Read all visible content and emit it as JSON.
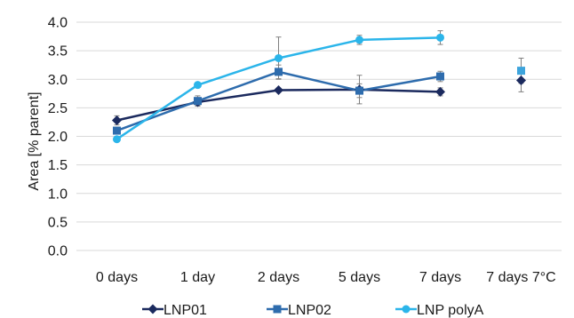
{
  "chart_data": {
    "type": "line",
    "title": "",
    "xlabel": "",
    "ylabel": "Area [% parent]",
    "ylim": [
      0.0,
      4.0
    ],
    "yticks": [
      "0.0",
      "0.5",
      "1.0",
      "1.5",
      "2.0",
      "2.5",
      "3.0",
      "3.5",
      "4.0"
    ],
    "categories": [
      "0 days",
      "1 day",
      "2 days",
      "5 days",
      "7 days",
      "7 days 7°C"
    ],
    "grid": "horizontal",
    "legend_position": "bottom",
    "series": [
      {
        "name": "LNP01",
        "color": "#1b2a5e",
        "marker": "diamond",
        "values": [
          2.28,
          2.6,
          2.81,
          2.82,
          2.78,
          2.98
        ],
        "errors": [
          0.08,
          0.06,
          0.03,
          0.25,
          0.07,
          0.2
        ],
        "connected": [
          true,
          true,
          true,
          true,
          true,
          false
        ]
      },
      {
        "name": "LNP02",
        "color": "#2e6cad",
        "marker": "square",
        "values": [
          2.1,
          2.62,
          3.13,
          2.8,
          3.05,
          3.15
        ],
        "errors": [
          0.06,
          0.09,
          0.12,
          0.12,
          0.09,
          0.22
        ],
        "connected": [
          true,
          true,
          true,
          true,
          true,
          false
        ]
      },
      {
        "name": "LNP polyA",
        "color": "#2bb5ea",
        "marker": "circle",
        "values": [
          1.95,
          2.9,
          3.37,
          3.69,
          3.73,
          null
        ],
        "errors": [
          0.03,
          0.04,
          0.37,
          0.08,
          0.12,
          null
        ],
        "connected": [
          true,
          true,
          true,
          true,
          true,
          false
        ]
      }
    ],
    "unconnected_last_point_colors": [
      "#1b2a5e",
      "#3da4dc"
    ]
  }
}
